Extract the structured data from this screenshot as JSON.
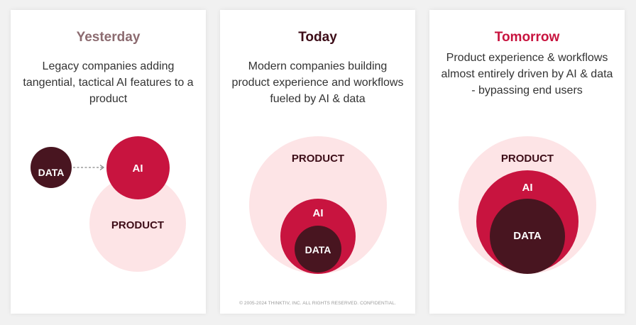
{
  "colors": {
    "background": "#f1f1f1",
    "panel": "#ffffff",
    "product_fill": "#fde4e6",
    "ai_fill": "#c8143f",
    "data_fill": "#481520",
    "yesterday_title": "#8c6b70",
    "today_title": "#3d0d18",
    "tomorrow_title": "#c8143f",
    "product_label": "#3d0d18",
    "ai_label": "#ffffff",
    "data_label": "#ffffff",
    "arrow": "#888888"
  },
  "panels": [
    {
      "title": "Yesterday",
      "description": "Legacy companies adding tangential, tactical AI features to a product",
      "product_label": "PRODUCT",
      "ai_label": "AI",
      "data_label": "DATA"
    },
    {
      "title": "Today",
      "description": "Modern companies building product experience and workflows fueled by AI & data",
      "product_label": "PRODUCT",
      "ai_label": "AI",
      "data_label": "DATA",
      "footer": "© 2005-2024 THINKTIV, INC.  ALL RIGHTS RESERVED.  CONFIDENTIAL."
    },
    {
      "title": "Tomorrow",
      "description": "Product experience & workflows almost entirely driven by AI & data - bypassing end users",
      "product_label": "PRODUCT",
      "ai_label": "AI",
      "data_label": "DATA"
    }
  ]
}
